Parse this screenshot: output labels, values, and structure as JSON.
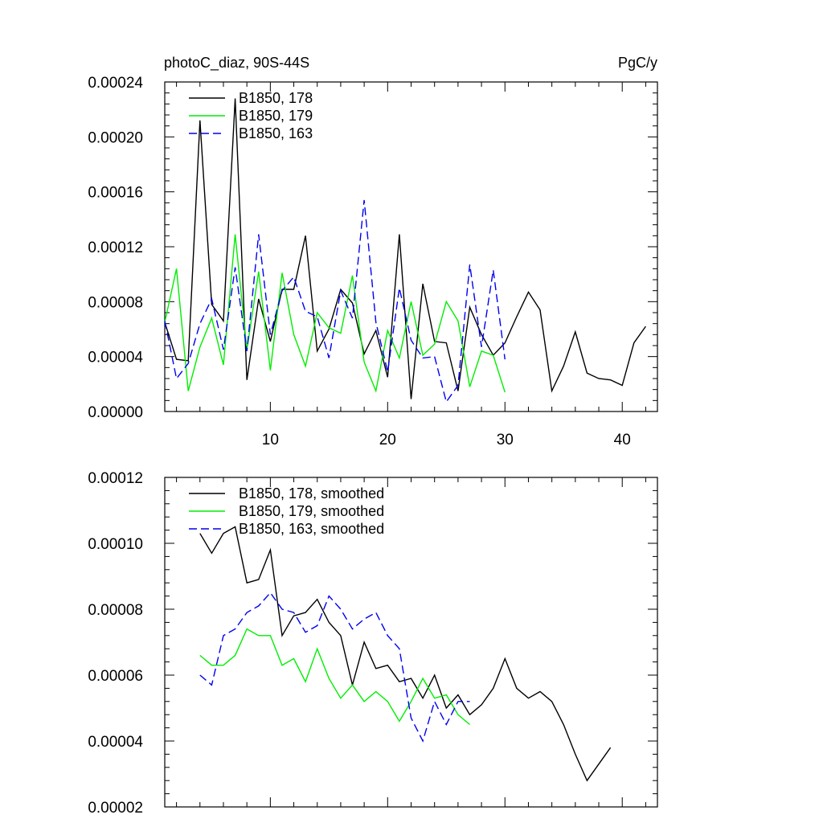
{
  "figure": {
    "title_left": "photoC_diaz, 90S-44S",
    "title_right": "PgC/y"
  },
  "colors": {
    "series_178": "#000000",
    "series_179": "#00ee00",
    "series_163": "#0000ee"
  },
  "chart_data": [
    {
      "type": "line",
      "title": "photoC_diaz, 90S-44S",
      "units": "PgC/y",
      "xlim": [
        1,
        43
      ],
      "ylim": [
        0,
        0.00024
      ],
      "x_ticks": [
        10,
        20,
        30,
        40
      ],
      "y_ticks": [
        "0.00000",
        "0.00004",
        "0.00008",
        "0.00012",
        "0.00016",
        "0.00020",
        "0.00024"
      ],
      "legend": "top-left",
      "series": [
        {
          "name": "B1850, 178",
          "dash": "solid",
          "x": [
            1,
            2,
            3,
            4,
            5,
            6,
            7,
            8,
            9,
            10,
            11,
            12,
            13,
            14,
            15,
            16,
            17,
            18,
            19,
            20,
            21,
            22,
            23,
            24,
            25,
            26,
            27,
            28,
            29,
            30,
            31,
            32,
            33,
            34,
            35,
            36,
            37,
            38,
            39,
            40,
            41,
            42
          ],
          "y": [
            6.5e-05,
            3.8e-05,
            3.7e-05,
            0.000212,
            7.8e-05,
            6.6e-05,
            0.000228,
            2.3e-05,
            8.2e-05,
            5.1e-05,
            8.9e-05,
            8.9e-05,
            0.000128,
            4.4e-05,
            6e-05,
            8.9e-05,
            7.9e-05,
            4.2e-05,
            5.9e-05,
            2.5e-05,
            0.000129,
            9e-06,
            9.3e-05,
            5.1e-05,
            5e-05,
            1.5e-05,
            7.6e-05,
            5.6e-05,
            4.1e-05,
            5e-05,
            6.9e-05,
            8.7e-05,
            7.4e-05,
            1.5e-05,
            3.3e-05,
            5.8e-05,
            2.8e-05,
            2.4e-05,
            2.3e-05,
            1.9e-05,
            5e-05,
            6.2e-05
          ]
        },
        {
          "name": "B1850, 179",
          "dash": "solid",
          "x": [
            1,
            2,
            3,
            4,
            5,
            6,
            7,
            8,
            9,
            10,
            11,
            12,
            13,
            14,
            15,
            16,
            17,
            18,
            19,
            20,
            21,
            22,
            23,
            24,
            25,
            26,
            27,
            28,
            29,
            30
          ],
          "y": [
            6.5e-05,
            0.000104,
            1.5e-05,
            4.7e-05,
            6.8e-05,
            3.4e-05,
            0.000129,
            4.5e-05,
            0.000102,
            3e-05,
            0.000101,
            5.6e-05,
            3.3e-05,
            7.2e-05,
            6.1e-05,
            5.7e-05,
            9.9e-05,
            3.6e-05,
            1.5e-05,
            5.9e-05,
            3.9e-05,
            8e-05,
            4.1e-05,
            4.9e-05,
            8e-05,
            6.6e-05,
            1.8e-05,
            4.4e-05,
            4.1e-05,
            1.4e-05
          ]
        },
        {
          "name": "B1850, 163",
          "dash": "dashed",
          "x": [
            1,
            2,
            3,
            4,
            5,
            6,
            7,
            8,
            9,
            10,
            11,
            12,
            13,
            14,
            15,
            16,
            17,
            18,
            19,
            20,
            21,
            22,
            23,
            24,
            25,
            26,
            27,
            28,
            29,
            30
          ],
          "y": [
            6.6e-05,
            2.4e-05,
            3.5e-05,
            6.4e-05,
            8.2e-05,
            4.5e-05,
            0.000105,
            4.4e-05,
            0.000129,
            5.6e-05,
            8.8e-05,
            9.8e-05,
            7.3e-05,
            6.9e-05,
            3.9e-05,
            8.8e-05,
            6.8e-05,
            0.000154,
            6.5e-05,
            2.9e-05,
            9e-05,
            5.2e-05,
            3.9e-05,
            4e-05,
            7e-06,
            1.9e-05,
            0.000107,
            4.7e-05,
            0.000103,
            3.8e-05
          ]
        }
      ]
    },
    {
      "type": "line",
      "xlim": [
        1,
        43
      ],
      "ylim": [
        2e-05,
        0.00012
      ],
      "y_ticks": [
        "0.00002",
        "0.00004",
        "0.00006",
        "0.00008",
        "0.00010",
        "0.00012"
      ],
      "legend": "top-left",
      "series": [
        {
          "name": "B1850, 178, smoothed",
          "dash": "solid",
          "x": [
            4,
            5,
            6,
            7,
            8,
            9,
            10,
            11,
            12,
            13,
            14,
            15,
            16,
            17,
            18,
            19,
            20,
            21,
            22,
            23,
            24,
            25,
            26,
            27,
            28,
            29,
            30,
            31,
            32,
            33,
            34,
            35,
            36,
            37,
            38,
            39
          ],
          "y": [
            0.000103,
            9.7e-05,
            0.000103,
            0.000105,
            8.8e-05,
            8.9e-05,
            9.8e-05,
            7.2e-05,
            7.8e-05,
            7.9e-05,
            8.3e-05,
            7.6e-05,
            7.2e-05,
            5.7e-05,
            7e-05,
            6.2e-05,
            6.3e-05,
            5.8e-05,
            5.9e-05,
            5.3e-05,
            6e-05,
            5e-05,
            5.4e-05,
            4.8e-05,
            5.1e-05,
            5.6e-05,
            6.5e-05,
            5.6e-05,
            5.3e-05,
            5.5e-05,
            5.2e-05,
            4.5e-05,
            3.6e-05,
            2.8e-05,
            3.3e-05,
            3.8e-05
          ]
        },
        {
          "name": "B1850, 179, smoothed",
          "dash": "solid",
          "x": [
            4,
            5,
            6,
            7,
            8,
            9,
            10,
            11,
            12,
            13,
            14,
            15,
            16,
            17,
            18,
            19,
            20,
            21,
            22,
            23,
            24,
            25,
            26,
            27
          ],
          "y": [
            6.6e-05,
            6.3e-05,
            6.3e-05,
            6.6e-05,
            7.4e-05,
            7.2e-05,
            7.2e-05,
            6.3e-05,
            6.5e-05,
            5.8e-05,
            6.8e-05,
            5.9e-05,
            5.3e-05,
            5.7e-05,
            5.2e-05,
            5.5e-05,
            5.2e-05,
            4.6e-05,
            5.2e-05,
            5.9e-05,
            5.3e-05,
            5.4e-05,
            4.8e-05,
            4.5e-05
          ]
        },
        {
          "name": "B1850, 163, smoothed",
          "dash": "dashed",
          "x": [
            4,
            5,
            6,
            7,
            8,
            9,
            10,
            11,
            12,
            13,
            14,
            15,
            16,
            17,
            18,
            19,
            20,
            21,
            22,
            23,
            24,
            25,
            26,
            27
          ],
          "y": [
            6e-05,
            5.7e-05,
            7.2e-05,
            7.4e-05,
            7.9e-05,
            8.1e-05,
            8.5e-05,
            8e-05,
            7.9e-05,
            7.3e-05,
            7.5e-05,
            8.4e-05,
            8e-05,
            7.4e-05,
            7.7e-05,
            7.9e-05,
            7.2e-05,
            6.8e-05,
            4.7e-05,
            4e-05,
            5.2e-05,
            4.5e-05,
            5.2e-05,
            5.2e-05
          ]
        }
      ]
    }
  ]
}
